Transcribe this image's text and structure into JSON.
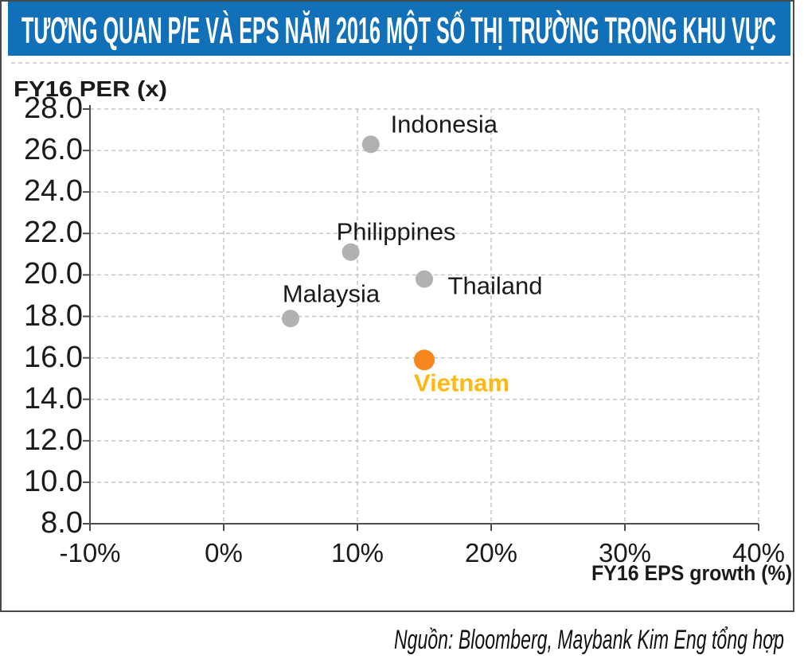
{
  "header": {
    "title": "TƯƠNG QUAN P/E VÀ EPS NĂM 2016 MỘT SỐ THỊ TRƯỜNG TRONG KHU VỰC"
  },
  "footer": {
    "source": "Nguồn: Bloomberg, Maybank Kim Eng tổng hợp"
  },
  "chart_data": {
    "type": "scatter",
    "title": "TƯƠNG QUAN P/E VÀ EPS NĂM 2016 MỘT SỐ THỊ TRƯỜNG TRONG KHU VỰC",
    "xlabel": "FY16 EPS growth (%)",
    "ylabel": "FY16  PER (x)",
    "xlim": [
      -10,
      40
    ],
    "ylim": [
      8,
      28
    ],
    "x_ticks": {
      "values": [
        -10,
        0,
        10,
        20,
        30,
        40
      ],
      "labels": [
        "-10%",
        "0%",
        "10%",
        "20%",
        "30%",
        "40%"
      ]
    },
    "y_ticks": {
      "values": [
        8,
        10,
        12,
        14,
        16,
        18,
        20,
        22,
        24,
        26,
        28
      ],
      "labels": [
        "8.0",
        "10.0",
        "12.0",
        "14.0",
        "16.0",
        "18.0",
        "20.0",
        "22.0",
        "24.0",
        "26.0",
        "28.0"
      ]
    },
    "grid": {
      "style": "dashed",
      "horizontal": true,
      "vertical": true
    },
    "legend": "none",
    "series": [
      {
        "name": "Malaysia",
        "x": 5,
        "y": 17.9,
        "marker_color": "#b1b1b1",
        "label_color": "#1a1a1a",
        "label_bold": false,
        "marker_r": 11,
        "label_dx": 51,
        "label_dy": -31
      },
      {
        "name": "Philippines",
        "x": 9.5,
        "y": 21.1,
        "marker_color": "#b1b1b1",
        "label_color": "#1a1a1a",
        "label_bold": false,
        "marker_r": 11,
        "label_dx": 57,
        "label_dy": -26
      },
      {
        "name": "Indonesia",
        "x": 11,
        "y": 26.3,
        "marker_color": "#b1b1b1",
        "label_color": "#1a1a1a",
        "label_bold": false,
        "marker_r": 11,
        "label_dx": 92,
        "label_dy": -25
      },
      {
        "name": "Thailand",
        "x": 15,
        "y": 19.8,
        "marker_color": "#b1b1b1",
        "label_color": "#1a1a1a",
        "label_bold": false,
        "marker_r": 11,
        "label_dx": 89,
        "label_dy": 8
      },
      {
        "name": "Vietnam",
        "x": 15,
        "y": 15.9,
        "marker_color": "#f6871f",
        "label_color": "#fdb813",
        "label_bold": true,
        "marker_r": 13,
        "label_dx": 47,
        "label_dy": 29
      }
    ],
    "source": "Nguồn: Bloomberg, Maybank Kim Eng tổng hợp"
  },
  "colors": {
    "header_bg": "#1170b8",
    "header_text": "#ffffff",
    "border": "#4a4a4a",
    "grid": "#c6c6c6",
    "axis": "#4d4d4d",
    "tick_text": "#1a1a1a",
    "background": "#ffffff"
  }
}
